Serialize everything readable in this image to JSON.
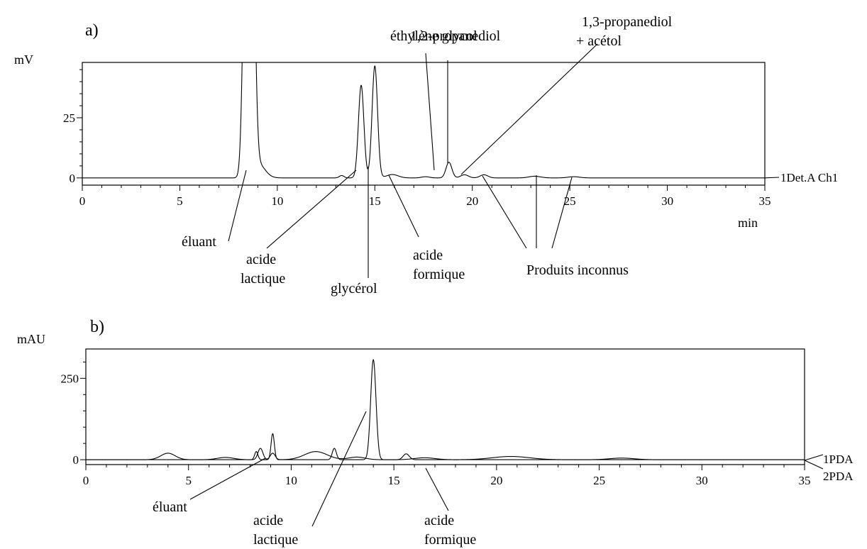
{
  "chart_data": [
    {
      "panel_label": "a)",
      "type": "line",
      "y_unit": "mV",
      "x_unit": "min",
      "xlim": [
        0,
        35
      ],
      "ylim": [
        -3,
        48
      ],
      "x_ticks": [
        0,
        5,
        10,
        15,
        20,
        25,
        30,
        35
      ],
      "y_ticks": [
        0,
        25
      ],
      "series": [
        {
          "name": "1Det.A Ch1",
          "peaks": [
            {
              "x": 8.4,
              "y": 120,
              "w": 0.15
            },
            {
              "x": 8.7,
              "y": 120,
              "w": 0.15
            },
            {
              "x": 9.0,
              "y": 6,
              "w": 0.35
            },
            {
              "x": 13.3,
              "y": 1,
              "w": 0.12
            },
            {
              "x": 14.3,
              "y": 38.5,
              "w": 0.14
            },
            {
              "x": 15.0,
              "y": 46.5,
              "w": 0.14
            },
            {
              "x": 15.9,
              "y": 1.4,
              "w": 0.3
            },
            {
              "x": 17.6,
              "y": 0.5,
              "w": 0.2
            },
            {
              "x": 18.8,
              "y": 6.5,
              "w": 0.15
            },
            {
              "x": 19.6,
              "y": 1.3,
              "w": 0.2
            },
            {
              "x": 20.6,
              "y": 1.3,
              "w": 0.2
            },
            {
              "x": 23.2,
              "y": 0.7,
              "w": 0.3
            },
            {
              "x": 25.2,
              "y": 0.5,
              "w": 0.3
            }
          ]
        }
      ],
      "annotations": [
        {
          "text": "éthylène glycol",
          "x": 18.0,
          "y": 2
        },
        {
          "text": "1,2-propanediol",
          "x": 18.8,
          "y": 6.5
        },
        {
          "text": "1,3-propanediol",
          "text2": "+ acétol",
          "x": 19.6,
          "y": 1.5
        },
        {
          "text": "éluant",
          "x": 8.4,
          "y": 2
        },
        {
          "text": "acide",
          "text2": "lactique",
          "x": 14.1,
          "y": 1.5
        },
        {
          "text": "glycérol",
          "x": 14.9,
          "y": 1.5
        },
        {
          "text": "acide",
          "text2": "formique",
          "x": 15.9,
          "y": 0.5
        },
        {
          "text": "Produits inconnus",
          "targets": [
            20.7,
            23.3,
            25.3
          ]
        }
      ]
    },
    {
      "panel_label": "b)",
      "type": "line",
      "y_unit": "mAU",
      "xlim": [
        0,
        35
      ],
      "ylim": [
        -15,
        340
      ],
      "x_ticks": [
        0,
        5,
        10,
        15,
        20,
        25,
        30,
        35
      ],
      "y_ticks": [
        0,
        250
      ],
      "series": [
        {
          "name": "1PDA",
          "peaks": [
            {
              "x": 8.3,
              "y": 25,
              "w": 0.08
            },
            {
              "x": 9.1,
              "y": 80,
              "w": 0.08
            },
            {
              "x": 12.1,
              "y": 35,
              "w": 0.1
            },
            {
              "x": 14.0,
              "y": 307,
              "w": 0.13
            },
            {
              "x": 15.6,
              "y": 18,
              "w": 0.15
            }
          ]
        },
        {
          "name": "2PDA",
          "peaks": [
            {
              "x": 4.0,
              "y": 20,
              "w": 0.35
            },
            {
              "x": 6.8,
              "y": 7,
              "w": 0.4
            },
            {
              "x": 8.5,
              "y": 35,
              "w": 0.12
            },
            {
              "x": 9.1,
              "y": 20,
              "w": 0.12
            },
            {
              "x": 11.2,
              "y": 25,
              "w": 0.55
            },
            {
              "x": 13.2,
              "y": 8,
              "w": 0.4
            },
            {
              "x": 16.5,
              "y": 6,
              "w": 0.5
            },
            {
              "x": 20.7,
              "y": 10,
              "w": 0.9
            },
            {
              "x": 26.1,
              "y": 5,
              "w": 0.6
            }
          ]
        }
      ],
      "annotations": [
        {
          "text": "éluant",
          "x": 8.4,
          "y": 10
        },
        {
          "text": "acide",
          "text2": "lactique",
          "x": 14.0,
          "y": 150
        },
        {
          "text": "acide",
          "text2": "formique",
          "x": 15.6,
          "y": 12
        }
      ]
    }
  ]
}
